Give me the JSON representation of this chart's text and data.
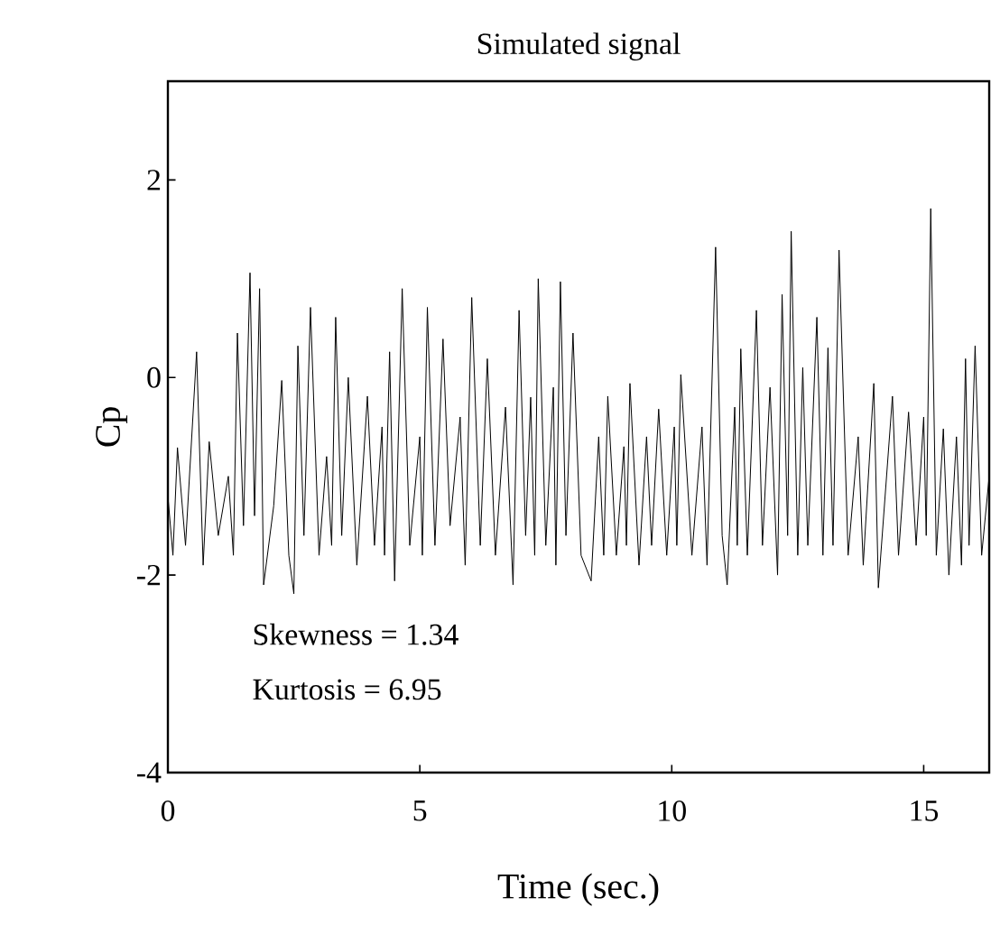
{
  "chart_data": {
    "type": "line",
    "title": "Simulated signal",
    "xlabel": "Time (sec.)",
    "ylabel": "Cp",
    "xlim": [
      0,
      16.3
    ],
    "ylim": [
      -4,
      3
    ],
    "xticks": [
      0,
      5,
      10,
      15
    ],
    "yticks": [
      -4,
      -2,
      0,
      2
    ],
    "grid": false,
    "annotations": [
      "Skewness = 1.34",
      "Kurtosis = 6.95"
    ],
    "series": [
      {
        "color": "#000000",
        "x": [
          0,
          0.1,
          0.19,
          0.35,
          0.57,
          0.7,
          0.82,
          1.0,
          1.2,
          1.3,
          1.38,
          1.5,
          1.63,
          1.72,
          1.82,
          1.9,
          2.1,
          2.26,
          2.4,
          2.5,
          2.58,
          2.7,
          2.83,
          3.0,
          3.15,
          3.25,
          3.33,
          3.45,
          3.58,
          3.75,
          3.96,
          4.1,
          4.25,
          4.3,
          4.4,
          4.5,
          4.65,
          4.8,
          5.0,
          5.05,
          5.15,
          5.3,
          5.46,
          5.6,
          5.8,
          5.9,
          6.03,
          6.2,
          6.34,
          6.5,
          6.7,
          6.85,
          6.97,
          7.1,
          7.2,
          7.28,
          7.35,
          7.5,
          7.65,
          7.7,
          7.79,
          7.9,
          8.04,
          8.2,
          8.4,
          8.55,
          8.65,
          8.73,
          8.9,
          9.05,
          9.1,
          9.17,
          9.35,
          9.5,
          9.6,
          9.74,
          9.9,
          10.05,
          10.1,
          10.18,
          10.4,
          10.6,
          10.7,
          10.87,
          11.0,
          11.1,
          11.25,
          11.3,
          11.37,
          11.5,
          11.68,
          11.8,
          11.95,
          12.1,
          12.19,
          12.3,
          12.37,
          12.5,
          12.6,
          12.7,
          12.88,
          13.0,
          13.1,
          13.2,
          13.32,
          13.5,
          13.7,
          13.8,
          14.01,
          14.1,
          14.38,
          14.5,
          14.7,
          14.85,
          15.0,
          15.05,
          15.14,
          15.25,
          15.39,
          15.5,
          15.65,
          15.75,
          15.83,
          15.9,
          16.02,
          16.15,
          16.3
        ],
        "values": [
          -1.2,
          -1.8,
          -0.71,
          -1.7,
          0.26,
          -1.9,
          -0.65,
          -1.6,
          -1.0,
          -1.8,
          0.45,
          -1.5,
          1.06,
          -1.4,
          0.9,
          -2.1,
          -1.3,
          -0.03,
          -1.8,
          -2.19,
          0.32,
          -1.6,
          0.71,
          -1.8,
          -0.8,
          -1.7,
          0.61,
          -1.6,
          0.0,
          -1.9,
          -0.19,
          -1.7,
          -0.5,
          -1.8,
          0.26,
          -2.06,
          0.9,
          -1.7,
          -0.6,
          -1.8,
          0.71,
          -1.7,
          0.39,
          -1.5,
          -0.4,
          -1.9,
          0.81,
          -1.7,
          0.19,
          -1.8,
          -0.3,
          -2.1,
          0.68,
          -1.6,
          -0.2,
          -1.8,
          1.0,
          -1.7,
          -0.1,
          -1.9,
          0.97,
          -1.6,
          0.45,
          -1.8,
          -2.06,
          -0.6,
          -1.8,
          -0.19,
          -1.8,
          -0.7,
          -1.7,
          -0.06,
          -1.9,
          -0.6,
          -1.7,
          -0.32,
          -1.8,
          -0.5,
          -1.7,
          0.03,
          -1.8,
          -0.5,
          -1.9,
          1.32,
          -1.6,
          -2.1,
          -0.3,
          -1.7,
          0.29,
          -1.8,
          0.68,
          -1.7,
          -0.1,
          -2.0,
          0.84,
          -1.6,
          1.48,
          -1.8,
          0.1,
          -1.7,
          0.61,
          -1.8,
          0.3,
          -1.7,
          1.29,
          -1.8,
          -0.6,
          -1.9,
          -0.06,
          -2.13,
          -0.19,
          -1.8,
          -0.35,
          -1.7,
          -0.4,
          -1.6,
          1.71,
          -1.8,
          -0.52,
          -2.0,
          -0.6,
          -1.9,
          0.19,
          -1.7,
          0.32,
          -1.8,
          -1.0
        ]
      }
    ]
  }
}
